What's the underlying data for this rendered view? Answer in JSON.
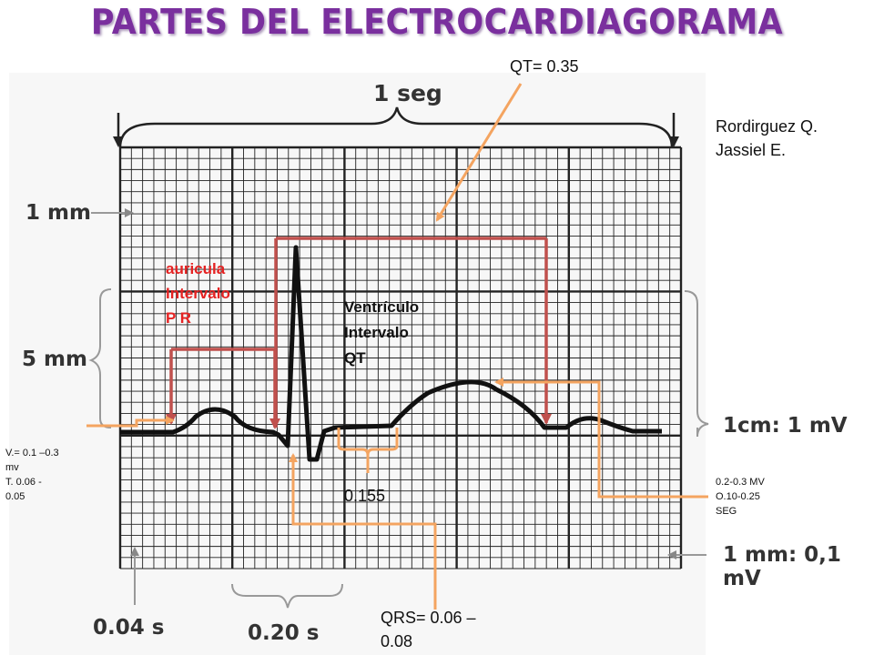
{
  "title": "PARTES DEL ELECTROCARDIAGORAMA",
  "labels": {
    "one_sec": "1 seg",
    "one_mm": "1 mm",
    "five_mm": "5 mm",
    "cm_mv": "1cm: 1 mV",
    "mm_mv": "1 mm: 0,1 mV",
    "t004": "0.04 s",
    "t020": "0.20 s"
  },
  "annotations": {
    "qt_value": "QT= 0.35",
    "author": "Rordirguez Q.\nJassiel E.",
    "pr_label": "auricula\nIntervalo\nP R",
    "qt_label": "Ventrículo\nIntervalo\nQT",
    "st_value": "0.155",
    "qrs_value": "QRS= 0.06 –\n0.08",
    "p_note": "V.= 0.1 –0.3\nmv\nT. 0.06 -\n0.05",
    "t_note": "0.2-0.3 MV\nO.10-0.25\nSEG"
  },
  "colors": {
    "title": "#7a2f9e",
    "pr_bracket": "#c0504d",
    "arrow": "#f4a460",
    "pr_text": "#e52222"
  }
}
